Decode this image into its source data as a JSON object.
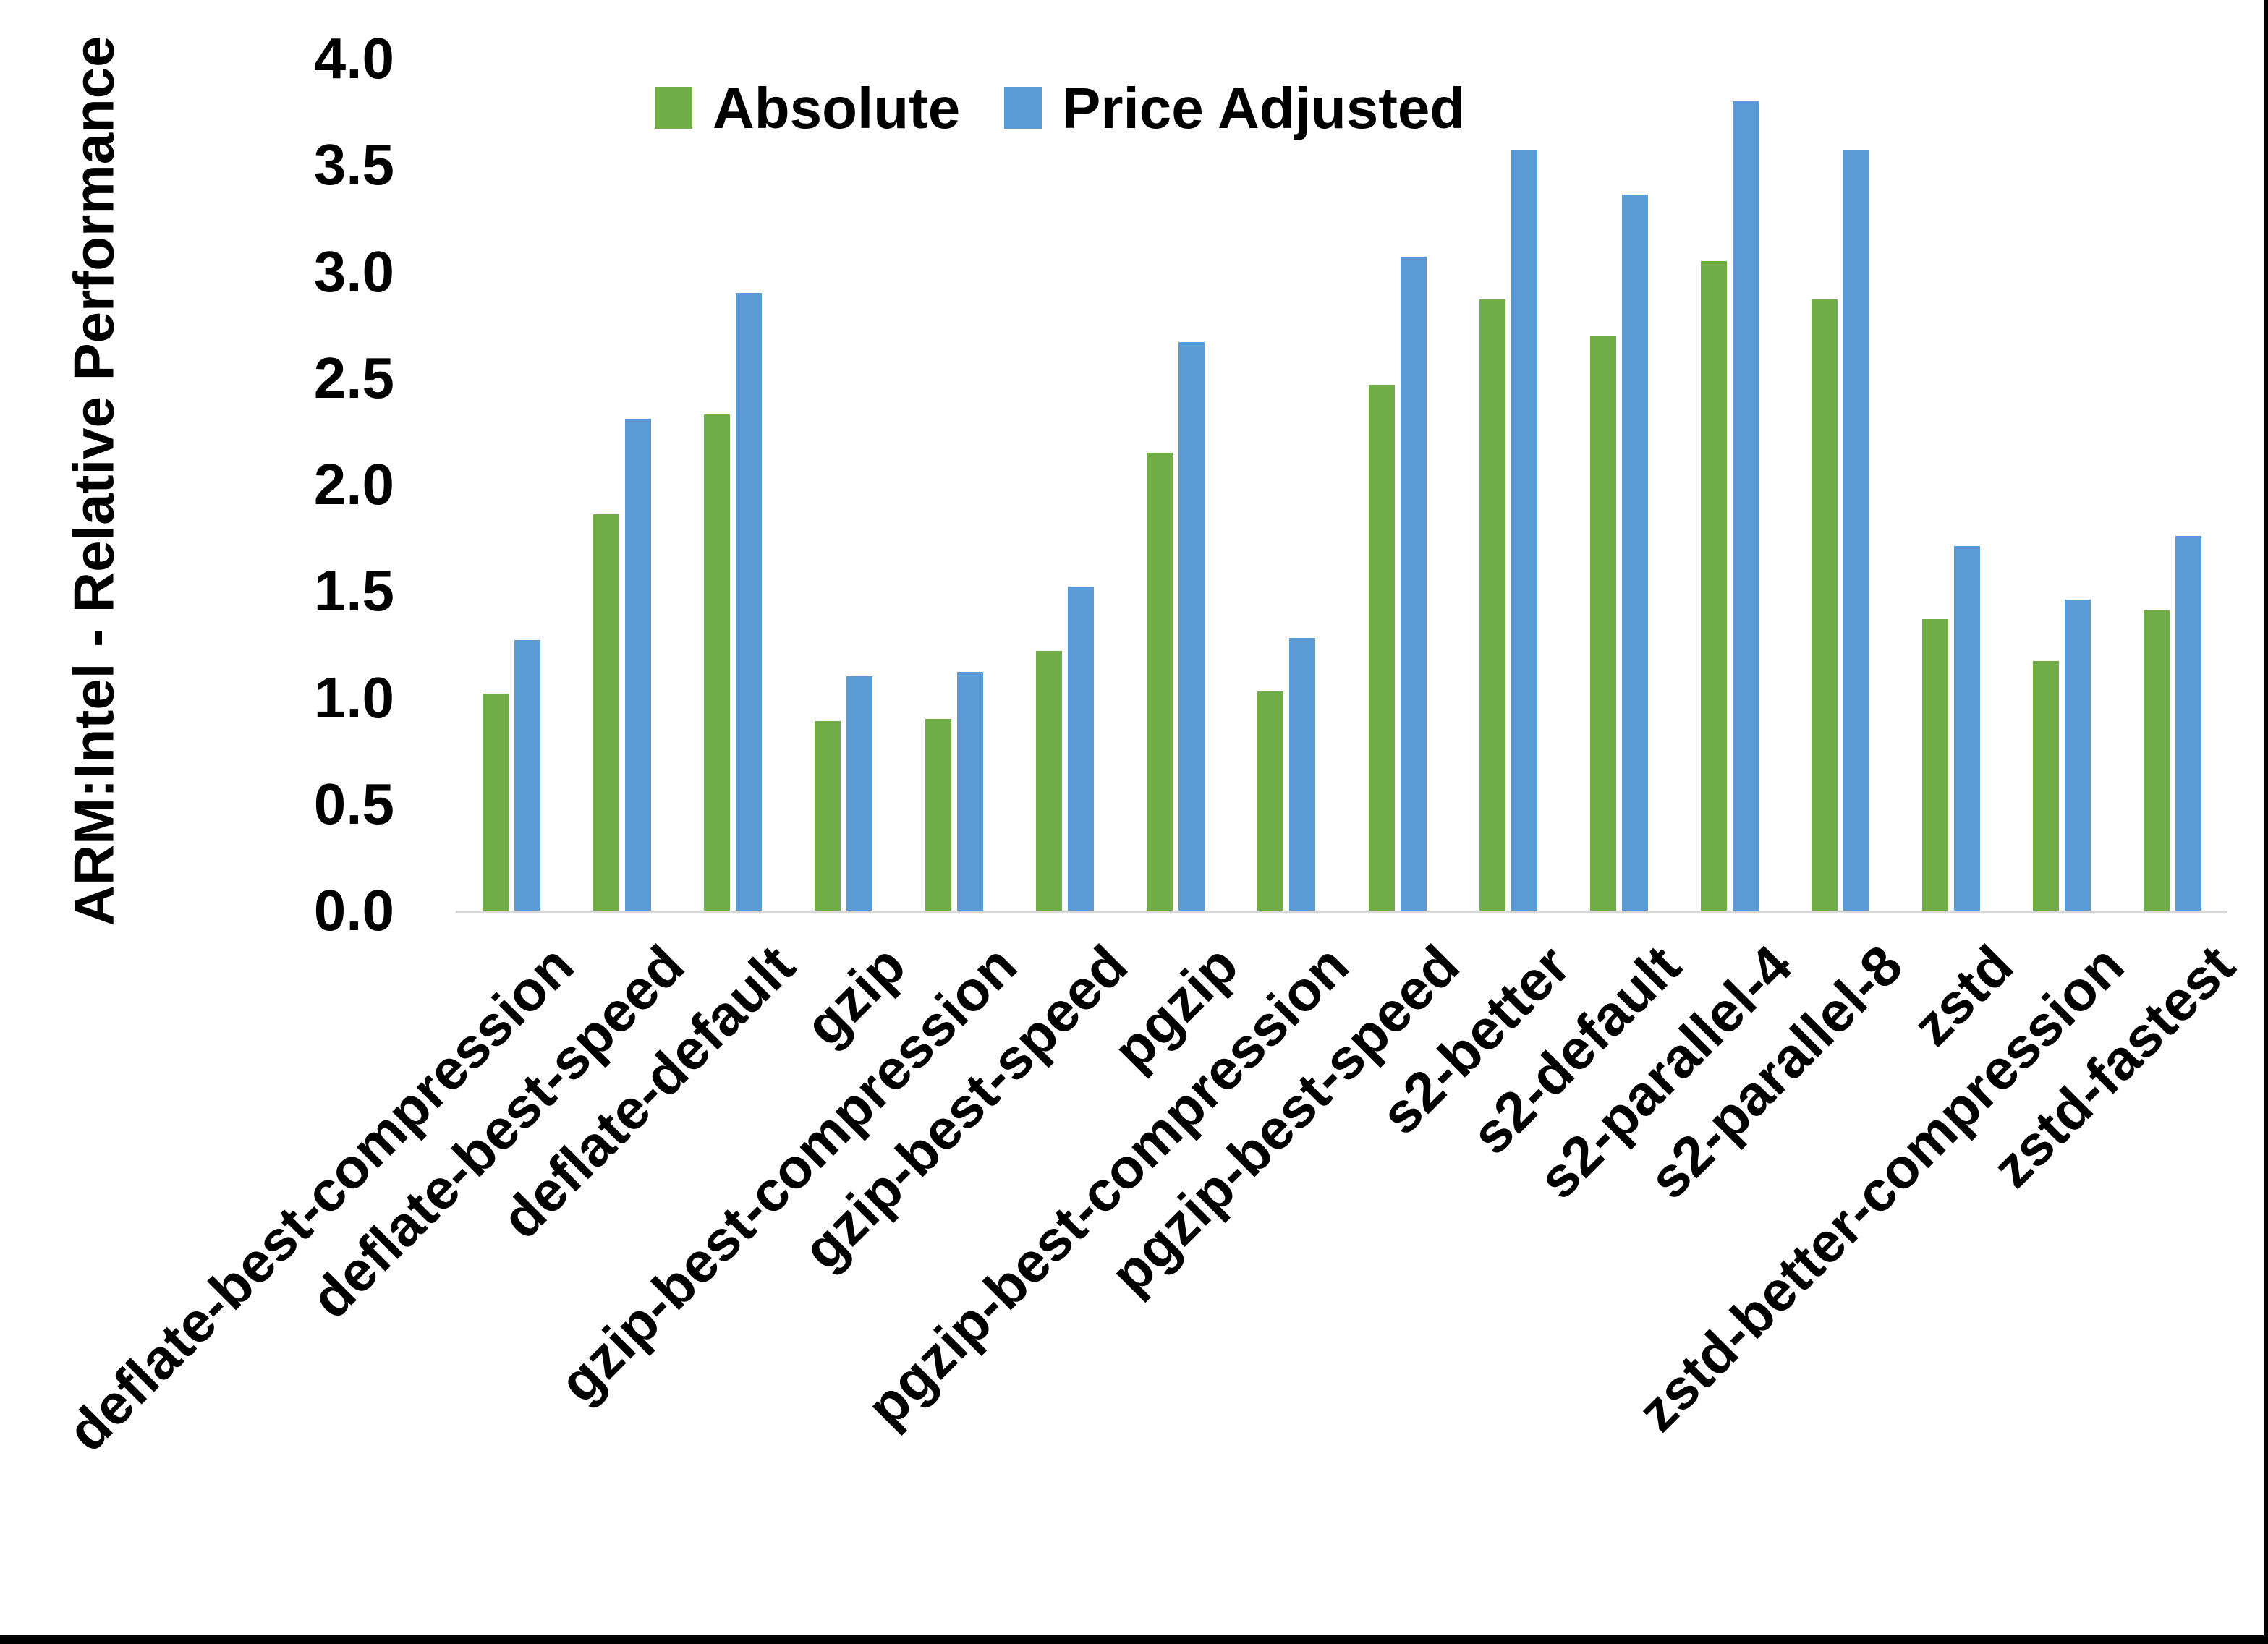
{
  "page": {
    "background": "#FFFFFF"
  },
  "borders": {
    "right_color": "#000000",
    "bottom_color": "#000000"
  },
  "legend": {
    "items": [
      {
        "label": "Absolute",
        "color": "#70AD47"
      },
      {
        "label": "Price Adjusted",
        "color": "#5B9BD5"
      }
    ]
  },
  "chart_data": {
    "type": "bar",
    "title": "",
    "xlabel": "",
    "ylabel": "ARM:Intel - Relative Performance",
    "ylim": [
      0.0,
      4.0
    ],
    "ytick_step": 0.5,
    "ytick_decimals": 1,
    "grid": false,
    "legend_position": "top-center",
    "axis_line_color": "#D9D9D9",
    "text_color": "#000000",
    "categories": [
      "deflate-best-compression",
      "deflate-best-speed",
      "deflate-default",
      "gzip",
      "gzip-best-compression",
      "gzip-best-speed",
      "pgzip",
      "pgzip-best-compression",
      "pgzip-best-speed",
      "s2-better",
      "s2-default",
      "s2-parallel-4",
      "s2-parallel-8",
      "zstd",
      "zstd-better-compression",
      "zstd-fastest"
    ],
    "series": [
      {
        "name": "Absolute",
        "color": "#70AD47",
        "values": [
          1.02,
          1.86,
          2.33,
          0.89,
          0.9,
          1.22,
          2.15,
          1.03,
          2.47,
          2.87,
          2.7,
          3.05,
          2.87,
          1.37,
          1.17,
          1.41
        ]
      },
      {
        "name": "Price Adjusted",
        "color": "#5B9BD5",
        "values": [
          1.27,
          2.31,
          2.9,
          1.1,
          1.12,
          1.52,
          2.67,
          1.28,
          3.07,
          3.57,
          3.36,
          3.8,
          3.57,
          1.71,
          1.46,
          1.76
        ]
      }
    ]
  }
}
